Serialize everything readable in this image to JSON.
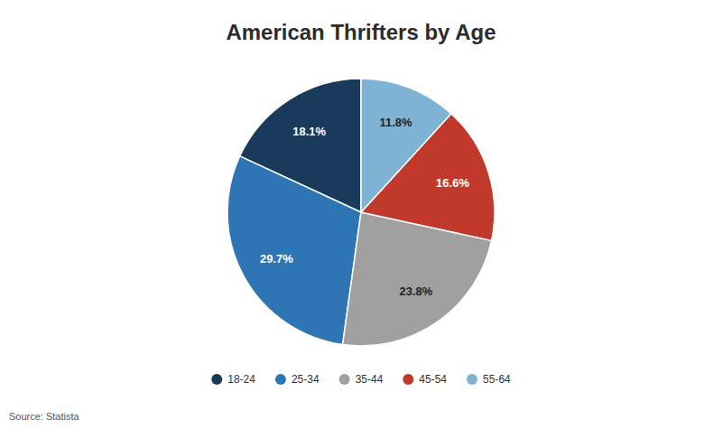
{
  "chart_data": {
    "type": "pie",
    "title": "American Thrifters by Age",
    "categories": [
      "18-24",
      "25-34",
      "35-44",
      "45-54",
      "55-64"
    ],
    "values": [
      18.1,
      29.7,
      23.8,
      16.6,
      11.8
    ],
    "value_labels": [
      "18.1%",
      "29.7%",
      "23.8%",
      "16.6%",
      "11.8%"
    ],
    "colors": [
      "#1a3a5c",
      "#2e75b6",
      "#a0a0a0",
      "#c0392b",
      "#7fb3d3"
    ],
    "data_labels": true,
    "legend": "bottom",
    "annotations": [
      "Source: Statista"
    ]
  }
}
